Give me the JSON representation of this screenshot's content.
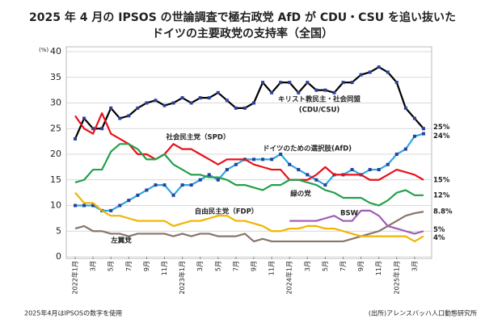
{
  "chart_data": {
    "type": "line",
    "title": [
      "2025 年 4 月の IPSOS の世論調査で極右政党 AfD が CDU・CSU を追い抜いた",
      "ドイツの主要政党の支持率（全国）"
    ],
    "y_unit": "(%)",
    "categories": [
      "2022年1月",
      null,
      "3月",
      null,
      "5月",
      null,
      "7月",
      null,
      "9月",
      null,
      "11月",
      null,
      "2023年1月",
      null,
      "3月",
      null,
      "5月",
      null,
      "7月",
      null,
      "9月",
      null,
      "11月",
      null,
      "2024年1月",
      null,
      "3月",
      null,
      "5月",
      null,
      "7月",
      null,
      "9月",
      null,
      "11月",
      null,
      "2025年1月",
      null,
      "3月",
      null
    ],
    "ylim": [
      0,
      40
    ],
    "yticks": [
      0,
      5,
      10,
      15,
      20,
      25,
      30,
      35,
      40
    ],
    "grid": true,
    "series": [
      {
        "name": "キリスト教民主・社会同盟",
        "name_note": "(CDU/CSU)",
        "color": "#000000",
        "marker_color": "#2a3f9c",
        "markers": true,
        "values": [
          23,
          27,
          25,
          25,
          29,
          27,
          27.5,
          29,
          30,
          30.5,
          29.5,
          30,
          31,
          30,
          31,
          31,
          32,
          30.5,
          29,
          29,
          30,
          34,
          32,
          34,
          34,
          32,
          34,
          32.5,
          32.5,
          32,
          34,
          34,
          35.5,
          36,
          37,
          36,
          34,
          29,
          27,
          25
        ],
        "value_labels": [
          null,
          null,
          null,
          null,
          null,
          null,
          null,
          null,
          null,
          null,
          null,
          null,
          null,
          null,
          null,
          null,
          null,
          null,
          null,
          null,
          null,
          null,
          null,
          null,
          null,
          null,
          null,
          null,
          null,
          null,
          null,
          null,
          null,
          null,
          null,
          null,
          null,
          null,
          null,
          "25%"
        ]
      },
      {
        "name": "ドイツのための選択肢(AfD)",
        "color": "#2aa8e0",
        "marker_color": "#2a3f9c",
        "markers": true,
        "values": [
          10,
          10,
          10,
          9,
          9,
          10,
          11,
          12,
          13,
          14,
          14,
          12,
          14,
          14,
          15,
          16,
          15,
          17,
          18,
          19,
          19,
          19,
          19,
          20,
          18,
          17,
          16,
          15,
          14,
          16,
          16,
          17,
          16,
          17,
          17,
          18,
          20,
          21,
          23.5,
          24
        ],
        "value_labels": [
          null,
          null,
          null,
          null,
          null,
          null,
          null,
          null,
          null,
          null,
          null,
          null,
          null,
          null,
          null,
          null,
          null,
          null,
          null,
          null,
          null,
          null,
          null,
          null,
          null,
          null,
          null,
          null,
          null,
          null,
          null,
          null,
          null,
          null,
          null,
          null,
          null,
          null,
          null,
          "24%"
        ]
      },
      {
        "name": "社会民主党（SPD）",
        "color": "#e8101a",
        "markers": false,
        "values": [
          27.5,
          25,
          24,
          28,
          24,
          23,
          22,
          20,
          20,
          19,
          20,
          22,
          21,
          21,
          20,
          19,
          18,
          19,
          19,
          19,
          18,
          17.5,
          17,
          17,
          15,
          15,
          15,
          16,
          17.5,
          16,
          16,
          16,
          16,
          15,
          15,
          16,
          17,
          16.5,
          16,
          15
        ],
        "value_labels": [
          null,
          null,
          null,
          null,
          null,
          null,
          null,
          null,
          null,
          null,
          null,
          null,
          null,
          null,
          null,
          null,
          null,
          null,
          null,
          null,
          null,
          null,
          null,
          null,
          null,
          null,
          null,
          null,
          null,
          null,
          null,
          null,
          null,
          null,
          null,
          null,
          null,
          null,
          null,
          "15%"
        ]
      },
      {
        "name": "緑の党",
        "color": "#22a04a",
        "markers": false,
        "values": [
          14.5,
          15,
          17,
          17,
          20.5,
          22,
          22,
          21,
          19,
          19,
          20,
          18,
          17,
          16,
          16,
          15.5,
          15.5,
          15,
          14,
          14,
          13.5,
          13,
          14,
          14,
          15,
          15,
          14.5,
          14,
          13,
          12.5,
          11.5,
          11.5,
          11.5,
          10.5,
          10,
          11,
          12.5,
          13,
          12,
          12
        ],
        "value_labels": [
          null,
          null,
          null,
          null,
          null,
          null,
          null,
          null,
          null,
          null,
          null,
          null,
          null,
          null,
          null,
          null,
          null,
          null,
          null,
          null,
          null,
          null,
          null,
          null,
          null,
          null,
          null,
          null,
          null,
          null,
          null,
          null,
          null,
          null,
          null,
          null,
          null,
          null,
          null,
          "12%"
        ]
      },
      {
        "name": "左翼党",
        "color": "#8a7468",
        "markers": false,
        "values": [
          5.5,
          6,
          5,
          5,
          4.5,
          4.5,
          4,
          4.5,
          4.5,
          4.5,
          4.5,
          4,
          4.5,
          4,
          4.5,
          4.5,
          4,
          4,
          4,
          4.5,
          3,
          3.5,
          3,
          3,
          3,
          3,
          3,
          3,
          3,
          3,
          3,
          3.5,
          4,
          4.5,
          5,
          6,
          7,
          8,
          8.5,
          8.8
        ],
        "value_labels": [
          null,
          null,
          null,
          null,
          null,
          null,
          null,
          null,
          null,
          null,
          null,
          null,
          null,
          null,
          null,
          null,
          null,
          null,
          null,
          null,
          null,
          null,
          null,
          null,
          null,
          null,
          null,
          null,
          null,
          null,
          null,
          null,
          null,
          null,
          null,
          null,
          null,
          null,
          null,
          "8.8%"
        ]
      },
      {
        "name": "BSW",
        "color": "#a05ab5",
        "markers": false,
        "values": [
          null,
          null,
          null,
          null,
          null,
          null,
          null,
          null,
          null,
          null,
          null,
          null,
          null,
          null,
          null,
          null,
          null,
          null,
          null,
          null,
          null,
          null,
          null,
          null,
          7,
          7,
          7,
          7,
          7.5,
          8,
          7,
          7,
          9,
          9,
          8,
          6,
          5.5,
          5,
          4.5,
          5
        ],
        "value_labels": [
          null,
          null,
          null,
          null,
          null,
          null,
          null,
          null,
          null,
          null,
          null,
          null,
          null,
          null,
          null,
          null,
          null,
          null,
          null,
          null,
          null,
          null,
          null,
          null,
          null,
          null,
          null,
          null,
          null,
          null,
          null,
          null,
          null,
          null,
          null,
          null,
          null,
          null,
          null,
          "5%"
        ]
      },
      {
        "name": "自由民主党（FDP）",
        "color": "#f0b400",
        "markers": false,
        "values": [
          12.5,
          10.5,
          10.5,
          9,
          8,
          8,
          7.5,
          7,
          7,
          7,
          7,
          6,
          6.5,
          7,
          7,
          7.5,
          8,
          8,
          7,
          7,
          6.5,
          6,
          5,
          5,
          5.5,
          5.5,
          6,
          6,
          5.5,
          5.5,
          5,
          4.5,
          4,
          4,
          4,
          4,
          4,
          4,
          3,
          4
        ],
        "value_labels": [
          null,
          null,
          null,
          null,
          null,
          null,
          null,
          null,
          null,
          null,
          null,
          null,
          null,
          null,
          null,
          null,
          null,
          null,
          null,
          null,
          null,
          null,
          null,
          null,
          null,
          null,
          null,
          null,
          null,
          null,
          null,
          null,
          null,
          null,
          null,
          null,
          null,
          null,
          null,
          "4%"
        ]
      }
    ],
    "footnote": "2025年4月はIPSOSの数字を使用",
    "source": "(出所)アレンスバッハ人口動態研究所"
  }
}
